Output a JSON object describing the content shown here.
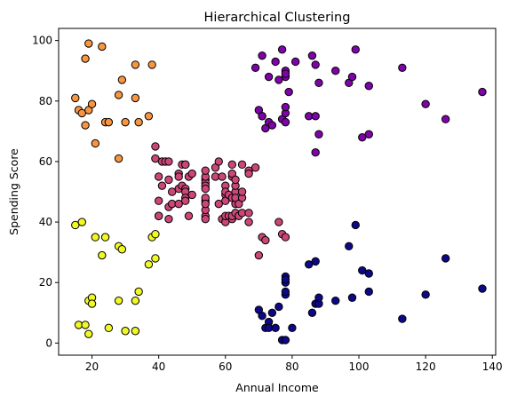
{
  "chart_data": {
    "type": "scatter",
    "title": "Hierarchical Clustering",
    "xlabel": "Annual Income",
    "ylabel": "Spending Score",
    "xlim": [
      10,
      141
    ],
    "ylim": [
      -4,
      104
    ],
    "xticks": [
      20,
      40,
      60,
      80,
      100,
      120,
      140
    ],
    "yticks": [
      0,
      20,
      40,
      60,
      80,
      100
    ],
    "grid": false,
    "legend": "none",
    "series": [
      {
        "color": "#f89540",
        "points": [
          [
            15,
            81
          ],
          [
            16,
            77
          ],
          [
            17,
            76
          ],
          [
            18,
            94
          ],
          [
            19,
            99
          ],
          [
            18,
            72
          ],
          [
            19,
            77
          ],
          [
            20,
            79
          ],
          [
            21,
            66
          ],
          [
            23,
            98
          ],
          [
            24,
            73
          ],
          [
            25,
            73
          ],
          [
            28,
            82
          ],
          [
            28,
            61
          ],
          [
            29,
            87
          ],
          [
            30,
            73
          ],
          [
            33,
            92
          ],
          [
            33,
            81
          ],
          [
            34,
            73
          ],
          [
            37,
            75
          ],
          [
            38,
            92
          ]
        ]
      },
      {
        "color": "#cc4778",
        "points": [
          [
            39,
            65
          ],
          [
            39,
            61
          ],
          [
            40,
            55
          ],
          [
            40,
            47
          ],
          [
            40,
            42
          ],
          [
            40,
            42
          ],
          [
            41,
            52
          ],
          [
            41,
            60
          ],
          [
            42,
            60
          ],
          [
            43,
            54
          ],
          [
            43,
            60
          ],
          [
            43,
            45
          ],
          [
            43,
            41
          ],
          [
            44,
            50
          ],
          [
            44,
            46
          ],
          [
            46,
            51
          ],
          [
            46,
            46
          ],
          [
            46,
            56
          ],
          [
            46,
            55
          ],
          [
            47,
            52
          ],
          [
            47,
            59
          ],
          [
            48,
            51
          ],
          [
            48,
            59
          ],
          [
            48,
            50
          ],
          [
            48,
            48
          ],
          [
            48,
            59
          ],
          [
            48,
            47
          ],
          [
            49,
            55
          ],
          [
            49,
            42
          ],
          [
            50,
            49
          ],
          [
            50,
            56
          ],
          [
            54,
            47
          ],
          [
            54,
            54
          ],
          [
            54,
            53
          ],
          [
            54,
            48
          ],
          [
            54,
            52
          ],
          [
            54,
            42
          ],
          [
            54,
            51
          ],
          [
            54,
            55
          ],
          [
            54,
            41
          ],
          [
            54,
            44
          ],
          [
            54,
            57
          ],
          [
            54,
            46
          ],
          [
            57,
            58
          ],
          [
            57,
            55
          ],
          [
            58,
            60
          ],
          [
            58,
            46
          ],
          [
            59,
            55
          ],
          [
            59,
            41
          ],
          [
            60,
            49
          ],
          [
            60,
            40
          ],
          [
            60,
            42
          ],
          [
            60,
            52
          ],
          [
            60,
            47
          ],
          [
            60,
            50
          ],
          [
            61,
            42
          ],
          [
            61,
            49
          ],
          [
            62,
            41
          ],
          [
            62,
            48
          ],
          [
            62,
            59
          ],
          [
            62,
            55
          ],
          [
            62,
            56
          ],
          [
            62,
            42
          ],
          [
            63,
            50
          ],
          [
            63,
            46
          ],
          [
            63,
            43
          ],
          [
            63,
            48
          ],
          [
            63,
            52
          ],
          [
            63,
            54
          ],
          [
            64,
            42
          ],
          [
            64,
            46
          ],
          [
            65,
            48
          ],
          [
            65,
            50
          ],
          [
            65,
            43
          ],
          [
            65,
            59
          ],
          [
            67,
            43
          ],
          [
            67,
            57
          ],
          [
            67,
            56
          ],
          [
            67,
            40
          ],
          [
            69,
            58
          ],
          [
            70,
            29
          ],
          [
            71,
            35
          ],
          [
            72,
            34
          ],
          [
            76,
            40
          ],
          [
            77,
            36
          ],
          [
            78,
            35
          ]
        ]
      },
      {
        "color": "#7e03a8",
        "points": [
          [
            69,
            91
          ],
          [
            70,
            77
          ],
          [
            71,
            95
          ],
          [
            71,
            75
          ],
          [
            71,
            75
          ],
          [
            72,
            71
          ],
          [
            73,
            88
          ],
          [
            73,
            73
          ],
          [
            74,
            72
          ],
          [
            75,
            93
          ],
          [
            76,
            87
          ],
          [
            77,
            97
          ],
          [
            77,
            74
          ],
          [
            78,
            90
          ],
          [
            78,
            88
          ],
          [
            78,
            76
          ],
          [
            78,
            89
          ],
          [
            78,
            78
          ],
          [
            78,
            73
          ],
          [
            79,
            83
          ],
          [
            81,
            93
          ],
          [
            85,
            75
          ],
          [
            86,
            95
          ],
          [
            87,
            63
          ],
          [
            87,
            75
          ],
          [
            87,
            92
          ],
          [
            88,
            86
          ],
          [
            88,
            69
          ],
          [
            93,
            90
          ],
          [
            97,
            86
          ],
          [
            98,
            88
          ],
          [
            99,
            97
          ],
          [
            101,
            68
          ],
          [
            103,
            85
          ],
          [
            103,
            69
          ],
          [
            113,
            91
          ],
          [
            120,
            79
          ],
          [
            126,
            74
          ],
          [
            137,
            83
          ]
        ]
      },
      {
        "color": "#f0f921",
        "points": [
          [
            15,
            39
          ],
          [
            16,
            6
          ],
          [
            17,
            40
          ],
          [
            18,
            6
          ],
          [
            19,
            3
          ],
          [
            19,
            14
          ],
          [
            20,
            15
          ],
          [
            20,
            13
          ],
          [
            21,
            35
          ],
          [
            23,
            29
          ],
          [
            24,
            35
          ],
          [
            25,
            5
          ],
          [
            28,
            14
          ],
          [
            28,
            32
          ],
          [
            29,
            31
          ],
          [
            30,
            4
          ],
          [
            33,
            4
          ],
          [
            33,
            14
          ],
          [
            34,
            17
          ],
          [
            37,
            26
          ],
          [
            38,
            35
          ],
          [
            39,
            36
          ],
          [
            39,
            28
          ]
        ]
      },
      {
        "color": "#0d0887",
        "points": [
          [
            70,
            11
          ],
          [
            71,
            9
          ],
          [
            72,
            5
          ],
          [
            73,
            7
          ],
          [
            73,
            5
          ],
          [
            74,
            10
          ],
          [
            75,
            5
          ],
          [
            76,
            12
          ],
          [
            77,
            1
          ],
          [
            78,
            1
          ],
          [
            78,
            22
          ],
          [
            78,
            20
          ],
          [
            78,
            16
          ],
          [
            78,
            17
          ],
          [
            78,
            21
          ],
          [
            80,
            5
          ],
          [
            85,
            26
          ],
          [
            86,
            10
          ],
          [
            87,
            27
          ],
          [
            87,
            13
          ],
          [
            88,
            13
          ],
          [
            88,
            15
          ],
          [
            93,
            14
          ],
          [
            97,
            32
          ],
          [
            98,
            15
          ],
          [
            99,
            39
          ],
          [
            101,
            24
          ],
          [
            103,
            17
          ],
          [
            103,
            23
          ],
          [
            113,
            8
          ],
          [
            120,
            16
          ],
          [
            126,
            28
          ],
          [
            137,
            18
          ]
        ]
      }
    ]
  }
}
